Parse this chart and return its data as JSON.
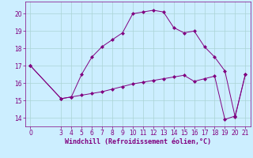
{
  "xlabel": "Windchill (Refroidissement éolien,°C)",
  "background_color": "#cceeff",
  "curve1_x": [
    0,
    3,
    4,
    5,
    6,
    7,
    8,
    9,
    10,
    11,
    12,
    13,
    14,
    15,
    16,
    17,
    18,
    19,
    20,
    21
  ],
  "curve1_y": [
    17.0,
    15.1,
    15.2,
    15.3,
    15.4,
    15.5,
    15.65,
    15.8,
    15.95,
    16.05,
    16.15,
    16.25,
    16.35,
    16.45,
    16.1,
    16.25,
    16.4,
    13.9,
    14.1,
    16.5
  ],
  "curve2_x": [
    0,
    3,
    4,
    5,
    6,
    7,
    8,
    9,
    10,
    11,
    12,
    13,
    14,
    15,
    16,
    17,
    18,
    19,
    20,
    21
  ],
  "curve2_y": [
    17.0,
    15.1,
    15.2,
    16.5,
    17.5,
    18.1,
    18.5,
    18.9,
    20.0,
    20.1,
    20.2,
    20.1,
    19.2,
    18.9,
    19.0,
    18.1,
    17.5,
    16.7,
    14.05,
    16.5
  ],
  "line_color": "#800080",
  "xlim": [
    -0.5,
    21.5
  ],
  "ylim": [
    13.5,
    20.7
  ],
  "yticks": [
    14,
    15,
    16,
    17,
    18,
    19,
    20
  ],
  "xticks": [
    0,
    3,
    4,
    5,
    6,
    7,
    8,
    9,
    10,
    11,
    12,
    13,
    14,
    15,
    16,
    17,
    18,
    19,
    20,
    21
  ],
  "grid_color": "#aad4d4",
  "marker": "D",
  "markersize": 2.0,
  "linewidth": 0.7,
  "tick_fontsize": 5.5,
  "xlabel_fontsize": 6.0
}
